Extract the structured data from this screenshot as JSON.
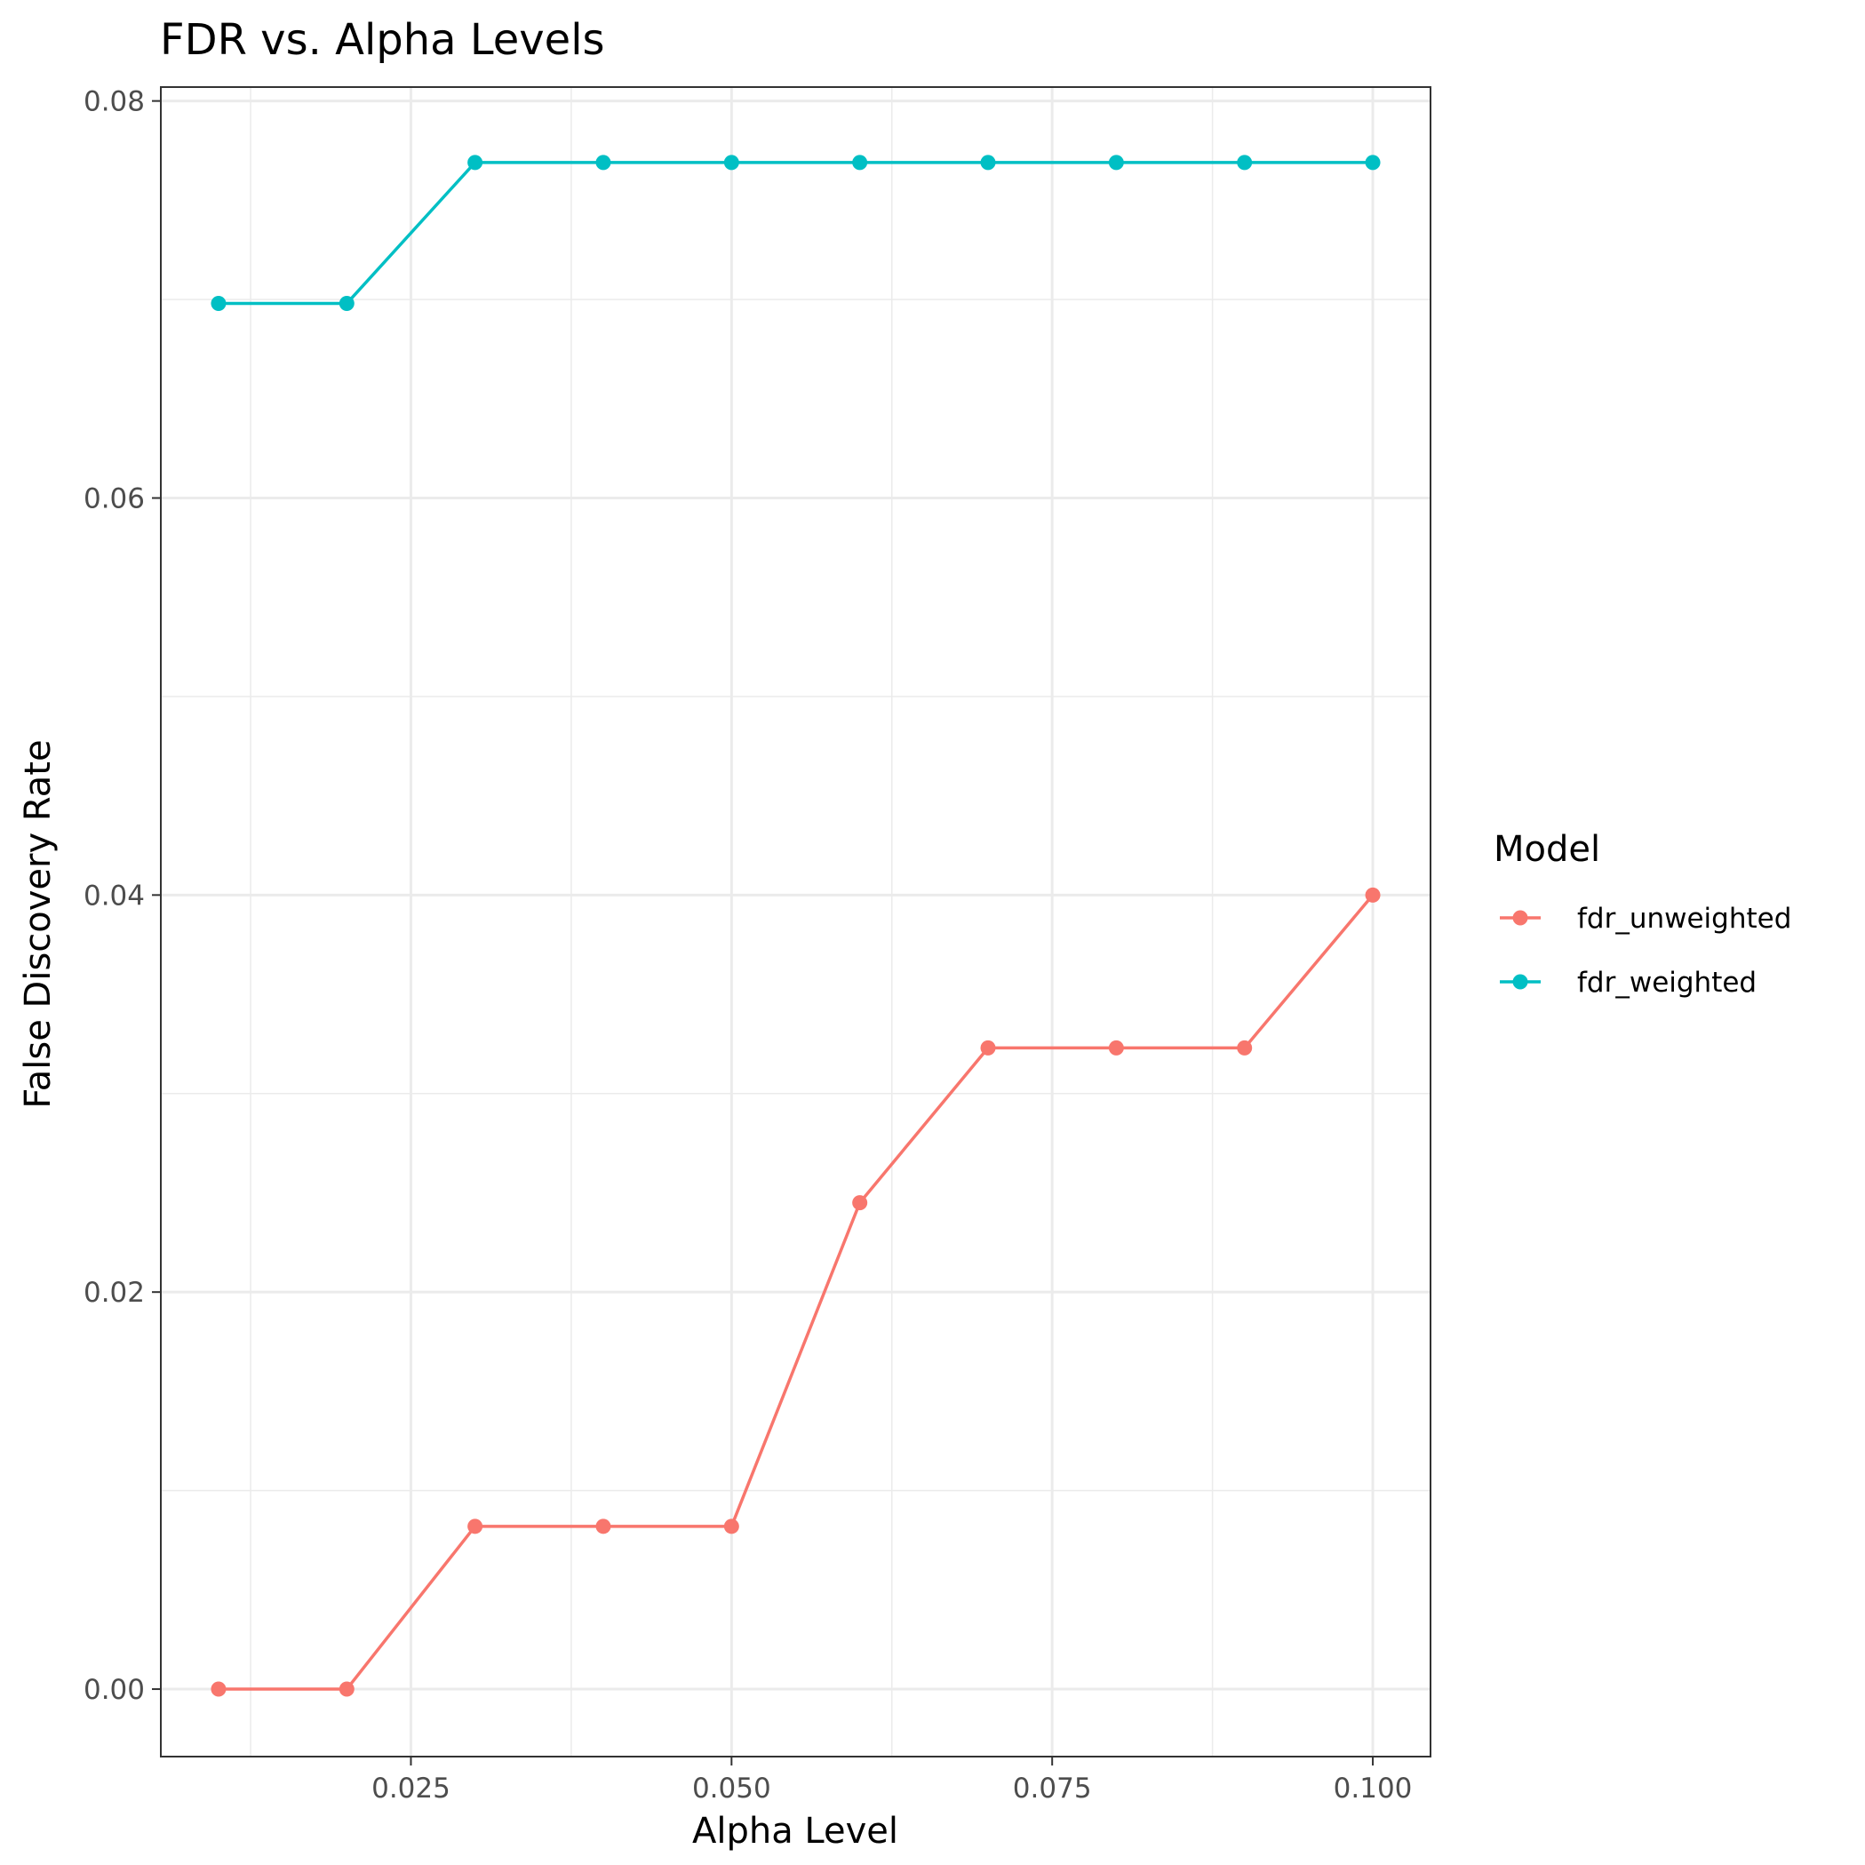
{
  "chart_data": {
    "type": "line",
    "title": "FDR vs. Alpha Levels",
    "xlabel": "Alpha Level",
    "ylabel": "False Discovery Rate",
    "x": [
      0.01,
      0.02,
      0.03,
      0.04,
      0.05,
      0.06,
      0.07,
      0.08,
      0.09,
      0.1
    ],
    "series": [
      {
        "name": "fdr_unweighted",
        "color": "#F8766D",
        "values": [
          0.0,
          0.0,
          0.0082,
          0.0082,
          0.0082,
          0.0245,
          0.0323,
          0.0323,
          0.0323,
          0.04
        ]
      },
      {
        "name": "fdr_weighted",
        "color": "#00BFC4",
        "values": [
          0.0698,
          0.0698,
          0.0769,
          0.0769,
          0.0769,
          0.0769,
          0.0769,
          0.0769,
          0.0769,
          0.0769
        ]
      }
    ],
    "xlim": [
      0.0055,
      0.1045
    ],
    "ylim": [
      -0.0034,
      0.0807
    ],
    "x_ticks": [
      0.025,
      0.05,
      0.075,
      0.1
    ],
    "x_tick_labels": [
      "0.025",
      "0.050",
      "0.075",
      "0.100"
    ],
    "x_minor_ticks": [
      0.0125,
      0.0375,
      0.0625,
      0.0875
    ],
    "y_ticks": [
      0.0,
      0.02,
      0.04,
      0.06,
      0.08
    ],
    "y_tick_labels": [
      "0.00",
      "0.02",
      "0.04",
      "0.06",
      "0.08"
    ],
    "y_minor_ticks": [
      0.01,
      0.03,
      0.05,
      0.07
    ],
    "grid": true,
    "legend": {
      "title": "Model",
      "placement": "right"
    },
    "colors": {
      "grid": "#ebebeb",
      "panel_border": "#333333",
      "tick_text": "#4d4d4d"
    }
  }
}
